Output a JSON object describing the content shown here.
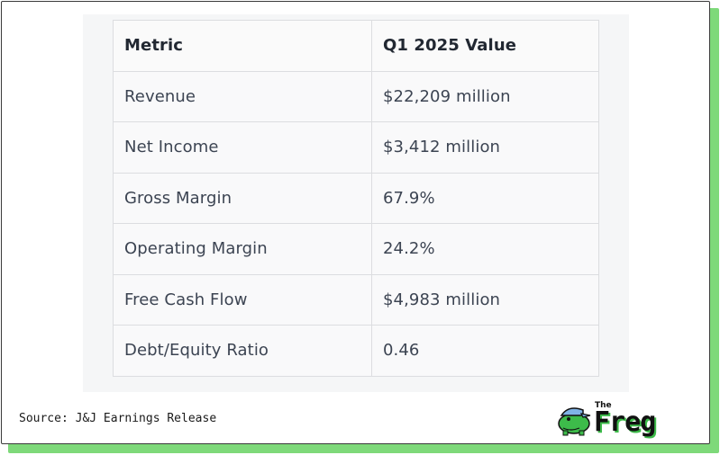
{
  "table": {
    "headers": [
      "Metric",
      "Q1 2025 Value"
    ],
    "rows": [
      [
        "Revenue",
        "$22,209 million"
      ],
      [
        "Net Income",
        "$3,412 million"
      ],
      [
        "Gross Margin",
        "67.9%"
      ],
      [
        "Operating Margin",
        "24.2%"
      ],
      [
        "Free Cash Flow",
        "$4,983 million"
      ],
      [
        "Debt/Equity Ratio",
        "0.46"
      ]
    ]
  },
  "footer": {
    "source": "Source: J&J Earnings Release"
  },
  "logo": {
    "small_text": "The",
    "word": "Freg"
  },
  "colors": {
    "accent_green": "#7ed97a",
    "frog_green": "#3dbb4a",
    "cap_blue": "#7fb3e6"
  }
}
